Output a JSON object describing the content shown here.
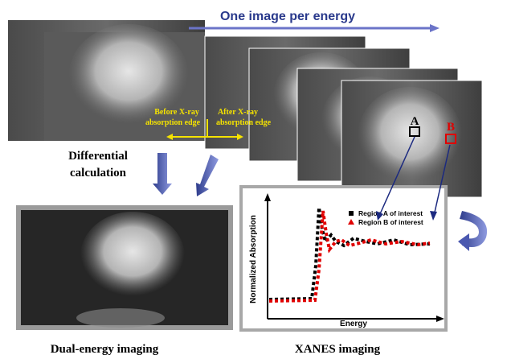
{
  "header": {
    "title": "One image per energy"
  },
  "edge_labels": {
    "before": [
      "Before X-ray",
      "absorption edge"
    ],
    "after": [
      "After X-ray",
      "absorption edge"
    ]
  },
  "process": [
    "Differential",
    "calculation"
  ],
  "regions": {
    "a": "A",
    "b": "B"
  },
  "plot": {
    "y_label": "Normalized Absorption",
    "x_label": "Energy",
    "legend": [
      "Region A of interest",
      "Region B of interest"
    ]
  },
  "captions": {
    "left": "Dual-energy imaging",
    "right": "XANES imaging"
  }
}
